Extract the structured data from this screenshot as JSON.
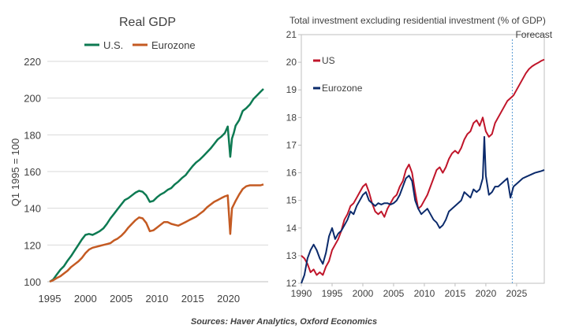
{
  "source": "Sources: Haver Analytics, Oxford Economics",
  "colors": {
    "us_left": "#0d7a52",
    "eu_left": "#c45a22",
    "us_right": "#c0152a",
    "eu_right": "#0b2a6b"
  },
  "chart_data": [
    {
      "type": "line",
      "title": "Real GDP",
      "xlabel": "",
      "ylabel": "Q1 1995 = 100",
      "xlim": [
        1995,
        2024.9
      ],
      "ylim": [
        100,
        220
      ],
      "yticks": [
        100,
        120,
        140,
        160,
        180,
        200,
        220
      ],
      "xticks": [
        1995,
        2000,
        2005,
        2010,
        2015,
        2020
      ],
      "grid": true,
      "legend": "top",
      "series": [
        {
          "name": "U.S.",
          "x": [
            1995,
            1995.5,
            1996,
            1996.5,
            1997,
            1997.5,
            1998,
            1998.5,
            1999,
            1999.5,
            2000,
            2000.5,
            2001,
            2001.5,
            2002,
            2002.5,
            2003,
            2003.5,
            2004,
            2004.5,
            2005,
            2005.5,
            2006,
            2006.5,
            2007,
            2007.5,
            2008,
            2008.5,
            2009,
            2009.5,
            2010,
            2010.5,
            2011,
            2011.5,
            2012,
            2012.5,
            2013,
            2013.5,
            2014,
            2014.5,
            2015,
            2015.5,
            2016,
            2016.5,
            2017,
            2017.5,
            2018,
            2018.5,
            2019,
            2019.5,
            2019.9,
            2020.25,
            2020.5,
            2020.75,
            2021,
            2021.5,
            2022,
            2022.5,
            2023,
            2023.5,
            2024,
            2024.5,
            2024.9
          ],
          "values": [
            100,
            101.2,
            104,
            106.5,
            108.5,
            111.5,
            114,
            117,
            120,
            123,
            125.5,
            126,
            125.5,
            126.5,
            127.5,
            129,
            131.5,
            134.5,
            137,
            139.5,
            142,
            144.5,
            145.5,
            147,
            148.5,
            149.5,
            149,
            147,
            143.5,
            144,
            146,
            147.5,
            148.5,
            150,
            151,
            153,
            154.5,
            156.5,
            158,
            160.5,
            163,
            165,
            166.5,
            168.5,
            170.5,
            172.5,
            175,
            177.5,
            179,
            181,
            184.5,
            168,
            178,
            181,
            185,
            188,
            193,
            194.5,
            196.5,
            199.5,
            201.5,
            203.5,
            205
          ]
        },
        {
          "name": "Eurozone",
          "x": [
            1995,
            1995.5,
            1996,
            1996.5,
            1997,
            1997.5,
            1998,
            1998.5,
            1999,
            1999.5,
            2000,
            2000.5,
            2001,
            2001.5,
            2002,
            2002.5,
            2003,
            2003.5,
            2004,
            2004.5,
            2005,
            2005.5,
            2006,
            2006.5,
            2007,
            2007.5,
            2008,
            2008.5,
            2009,
            2009.5,
            2010,
            2010.5,
            2011,
            2011.5,
            2012,
            2012.5,
            2013,
            2013.5,
            2014,
            2014.5,
            2015,
            2015.5,
            2016,
            2016.5,
            2017,
            2017.5,
            2018,
            2018.5,
            2019,
            2019.5,
            2019.9,
            2020.25,
            2020.5,
            2020.75,
            2021,
            2021.5,
            2022,
            2022.5,
            2023,
            2023.5,
            2024,
            2024.5,
            2024.9
          ],
          "values": [
            100,
            100.8,
            102,
            103,
            104.5,
            106,
            108,
            109.5,
            111,
            113,
            115.5,
            117.5,
            118.5,
            119,
            119.5,
            120,
            120.5,
            121,
            122.5,
            123.5,
            125,
            127,
            129.5,
            131.5,
            133.5,
            135,
            134.5,
            132,
            127.5,
            128,
            129.5,
            131,
            132.5,
            132.5,
            131.5,
            131,
            130.5,
            131.5,
            132.5,
            133.5,
            134.5,
            135.5,
            137,
            138.5,
            140.5,
            142,
            143.5,
            144.5,
            145.5,
            146.5,
            147,
            126,
            140,
            142,
            144,
            147.5,
            150.5,
            152,
            152.5,
            152.5,
            152.5,
            152.5,
            153
          ]
        }
      ]
    },
    {
      "type": "line",
      "title": "Total investment excluding residential investment (% of GDP)",
      "xlabel": "",
      "ylabel": "",
      "xlim": [
        1990,
        2029.5
      ],
      "ylim": [
        12,
        21
      ],
      "yticks": [
        12,
        13,
        14,
        15,
        16,
        17,
        18,
        19,
        20,
        21
      ],
      "xticks": [
        1990,
        1995,
        2000,
        2005,
        2010,
        2015,
        2020,
        2025
      ],
      "grid": false,
      "legend": "top-left",
      "annotation": {
        "text": "Forecast",
        "x": 2024.3
      },
      "series": [
        {
          "name": "US",
          "x": [
            1990,
            1990.5,
            1991,
            1991.5,
            1992,
            1992.5,
            1993,
            1993.5,
            1994,
            1994.5,
            1995,
            1995.5,
            1996,
            1996.5,
            1997,
            1997.5,
            1998,
            1998.5,
            1999,
            1999.5,
            2000,
            2000.5,
            2001,
            2001.5,
            2002,
            2002.5,
            2003,
            2003.5,
            2004,
            2004.5,
            2005,
            2005.5,
            2006,
            2006.5,
            2007,
            2007.5,
            2008,
            2008.5,
            2009,
            2009.5,
            2010,
            2010.5,
            2011,
            2011.5,
            2012,
            2012.5,
            2013,
            2013.5,
            2014,
            2014.5,
            2015,
            2015.5,
            2016,
            2016.5,
            2017,
            2017.5,
            2018,
            2018.5,
            2019,
            2019.5,
            2020,
            2020.5,
            2021,
            2021.5,
            2022,
            2022.5,
            2023,
            2023.5,
            2024,
            2024.5,
            2025,
            2025.5,
            2026,
            2026.5,
            2027,
            2027.5,
            2028,
            2028.5,
            2029,
            2029.5
          ],
          "values": [
            13.0,
            12.9,
            12.7,
            12.4,
            12.5,
            12.3,
            12.4,
            12.3,
            12.6,
            12.8,
            13.2,
            13.4,
            13.6,
            13.9,
            14.3,
            14.5,
            14.8,
            14.9,
            15.1,
            15.3,
            15.5,
            15.6,
            15.3,
            14.9,
            14.6,
            14.5,
            14.6,
            14.4,
            14.7,
            14.9,
            15.1,
            15.2,
            15.5,
            15.7,
            16.1,
            16.3,
            16.0,
            15.3,
            14.7,
            14.8,
            15.0,
            15.2,
            15.5,
            15.8,
            16.1,
            16.2,
            16.0,
            16.2,
            16.5,
            16.7,
            16.8,
            16.7,
            16.9,
            17.2,
            17.4,
            17.5,
            17.8,
            17.9,
            17.7,
            18.0,
            17.5,
            17.3,
            17.4,
            17.8,
            18.0,
            18.2,
            18.4,
            18.6,
            18.7,
            18.8,
            19.0,
            19.2,
            19.4,
            19.6,
            19.75,
            19.85,
            19.92,
            19.98,
            20.05,
            20.1
          ]
        },
        {
          "name": "Eurozone",
          "x": [
            1990,
            1990.5,
            1991,
            1991.5,
            1992,
            1992.5,
            1993,
            1993.5,
            1994,
            1994.5,
            1995,
            1995.5,
            1996,
            1996.5,
            1997,
            1997.5,
            1998,
            1998.5,
            1999,
            1999.5,
            2000,
            2000.5,
            2001,
            2001.5,
            2002,
            2002.5,
            2003,
            2003.5,
            2004,
            2004.5,
            2005,
            2005.5,
            2006,
            2006.5,
            2007,
            2007.5,
            2008,
            2008.5,
            2009,
            2009.5,
            2010,
            2010.5,
            2011,
            2011.5,
            2012,
            2012.5,
            2013,
            2013.5,
            2014,
            2014.5,
            2015,
            2015.5,
            2016,
            2016.5,
            2017,
            2017.5,
            2018,
            2018.5,
            2019,
            2019.5,
            2019.75,
            2020,
            2020.5,
            2021,
            2021.5,
            2022,
            2022.5,
            2023,
            2023.5,
            2024,
            2024.5,
            2025,
            2025.5,
            2026,
            2026.5,
            2027,
            2027.5,
            2028,
            2028.5,
            2029,
            2029.5
          ],
          "values": [
            12.0,
            12.3,
            12.9,
            13.2,
            13.4,
            13.2,
            12.9,
            12.7,
            13.1,
            13.7,
            14.0,
            13.6,
            13.8,
            13.9,
            14.1,
            14.3,
            14.6,
            14.5,
            14.8,
            15.0,
            15.2,
            15.3,
            15.0,
            14.9,
            14.8,
            14.9,
            14.85,
            14.9,
            14.9,
            14.85,
            14.9,
            15.0,
            15.2,
            15.5,
            15.8,
            15.9,
            15.7,
            15.0,
            14.7,
            14.5,
            14.6,
            14.7,
            14.5,
            14.3,
            14.2,
            14.0,
            14.1,
            14.3,
            14.6,
            14.7,
            14.8,
            14.9,
            15.0,
            15.3,
            15.2,
            15.1,
            15.4,
            15.3,
            15.4,
            15.8,
            17.3,
            15.9,
            15.2,
            15.3,
            15.5,
            15.5,
            15.6,
            15.7,
            15.8,
            15.1,
            15.5,
            15.6,
            15.7,
            15.8,
            15.85,
            15.9,
            15.95,
            16.0,
            16.03,
            16.06,
            16.1
          ]
        }
      ]
    }
  ]
}
